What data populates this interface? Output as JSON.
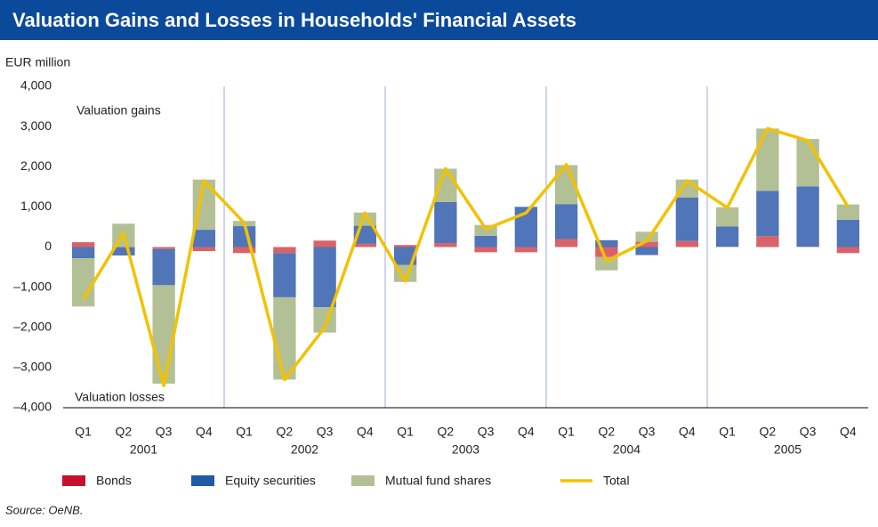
{
  "chart_data": {
    "type": "stacked_bar_line",
    "title": "Valuation Gains and Losses in Households' Financial Assets",
    "y_axis_label": "EUR million",
    "annotations": [
      "Valuation gains",
      "Valuation losses"
    ],
    "source": "Source: OeNB.",
    "categories": [
      "Q1",
      "Q2",
      "Q3",
      "Q4",
      "Q1",
      "Q2",
      "Q3",
      "Q4",
      "Q1",
      "Q2",
      "Q3",
      "Q4",
      "Q1",
      "Q2",
      "Q3",
      "Q4",
      "Q1",
      "Q2",
      "Q3",
      "Q4"
    ],
    "years": [
      "2001",
      "2002",
      "2003",
      "2004",
      "2005"
    ],
    "ylim": [
      -4000,
      4000
    ],
    "yticks": [
      {
        "value": -4000,
        "label": "–4,000"
      },
      {
        "value": -3000,
        "label": "–3,000"
      },
      {
        "value": -2000,
        "label": "–2,000"
      },
      {
        "value": -1000,
        "label": "–1,000"
      },
      0,
      {
        "value": 1000,
        "label": "1,000"
      },
      {
        "value": 2000,
        "label": "2,000"
      },
      {
        "value": 3000,
        "label": "3,000"
      },
      {
        "value": 4000,
        "label": "4,000"
      }
    ],
    "series": [
      {
        "name": "Bonds",
        "color": "#d9626a",
        "legend_color": "#c8102e",
        "values": [
          120,
          -10,
          -50,
          -100,
          -150,
          -150,
          160,
          80,
          50,
          100,
          -130,
          -130,
          200,
          -250,
          130,
          150,
          10,
          270,
          10,
          -150
        ]
      },
      {
        "name": "Equity securities",
        "color": "#5075b8",
        "legend_color": "#1f5aa6",
        "values": [
          -280,
          -200,
          -900,
          430,
          520,
          -1100,
          -1500,
          450,
          -450,
          1020,
          280,
          1000,
          870,
          170,
          -200,
          1080,
          500,
          1130,
          1500,
          680
        ]
      },
      {
        "name": "Mutual fund shares",
        "color": "#b3c095",
        "legend_color": "#b3c095",
        "values": [
          -1200,
          580,
          -2450,
          1250,
          130,
          -2050,
          -630,
          330,
          -420,
          830,
          270,
          0,
          970,
          -330,
          250,
          450,
          480,
          1550,
          1180,
          380
        ]
      },
      {
        "name": "Total",
        "type": "line",
        "color": "#f2c200",
        "values": [
          -1300,
          350,
          -3450,
          1650,
          600,
          -3300,
          -2000,
          850,
          -850,
          1950,
          450,
          850,
          2050,
          -350,
          150,
          1650,
          980,
          2950,
          2650,
          1000
        ]
      }
    ]
  }
}
